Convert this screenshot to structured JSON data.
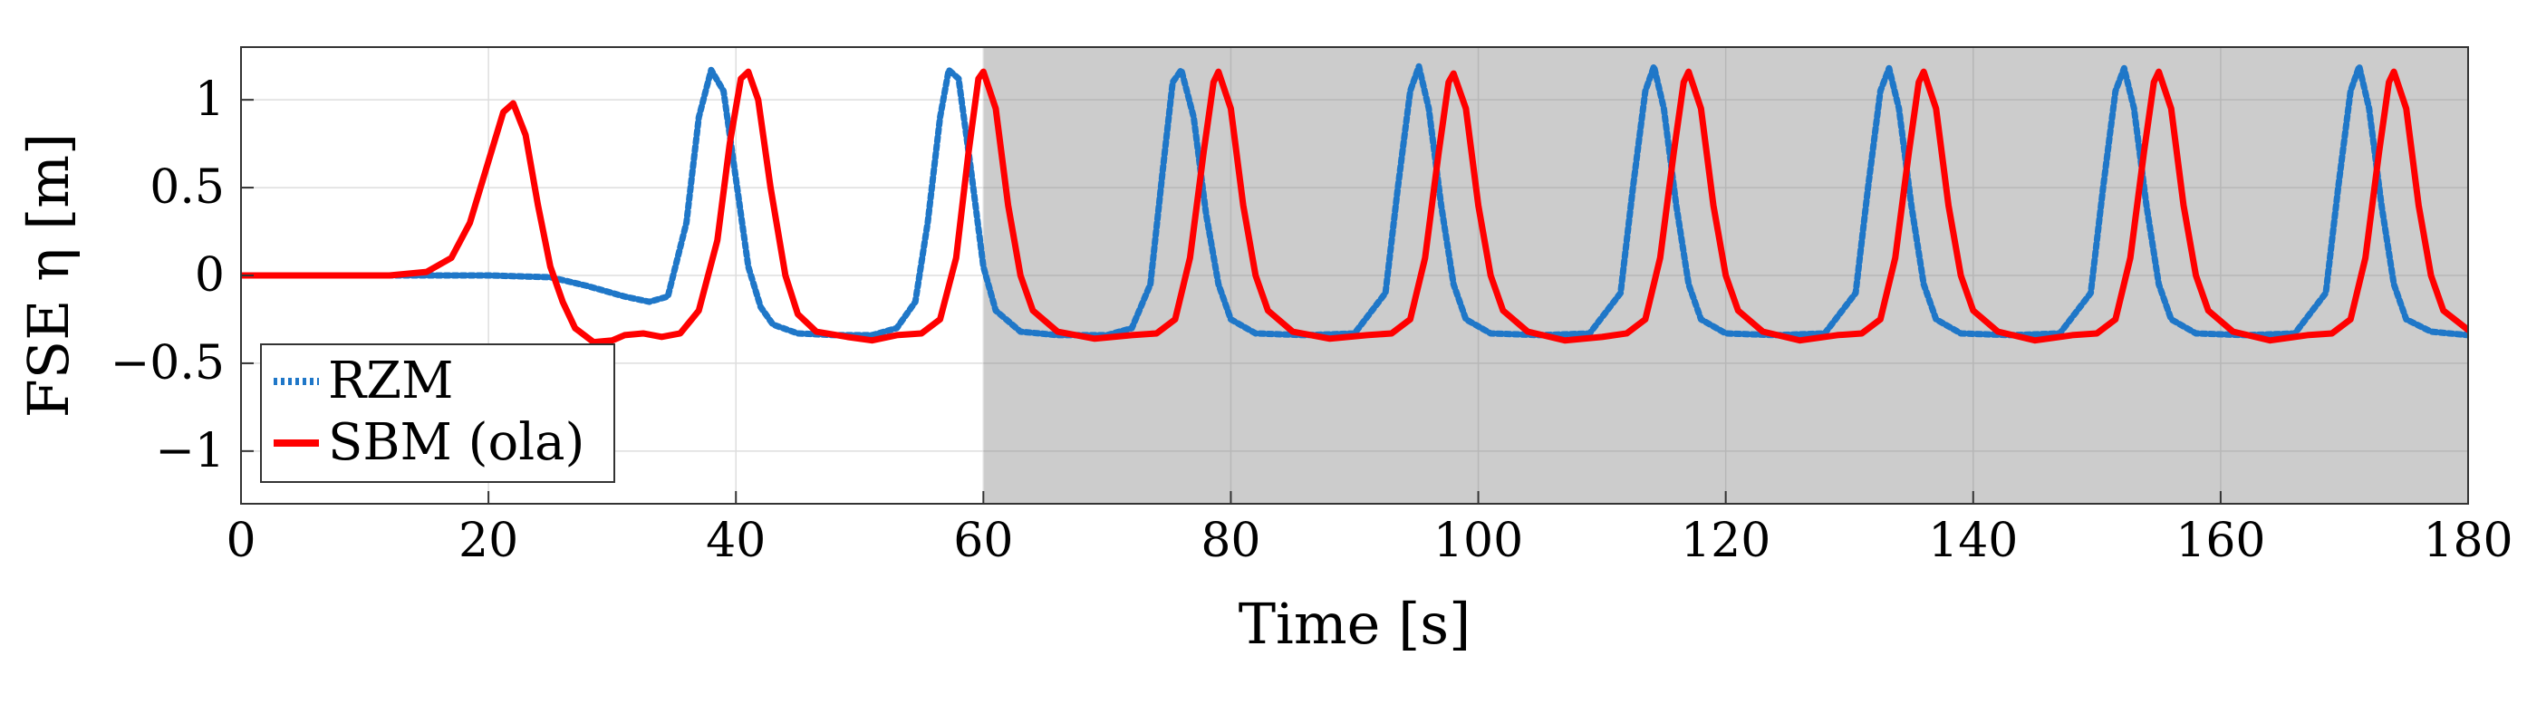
{
  "chart_data": {
    "type": "line",
    "title": "",
    "xlabel": "Time [s]",
    "ylabel": "FSE η [m]",
    "xlim": [
      0,
      180
    ],
    "ylim": [
      -1.3,
      1.3
    ],
    "xticks": [
      0,
      20,
      40,
      60,
      80,
      100,
      120,
      140,
      160,
      180
    ],
    "yticks": [
      -1,
      -0.5,
      0,
      0.5,
      1
    ],
    "xtick_labels": [
      "0",
      "20",
      "40",
      "60",
      "80",
      "100",
      "120",
      "140",
      "160",
      "180"
    ],
    "ytick_labels": [
      "−1",
      "−0.5",
      "0",
      "0.5",
      "1"
    ],
    "grid": true,
    "shaded_region": {
      "x_start": 60,
      "x_end": 180,
      "color": "#cccccc"
    },
    "legend": {
      "position": "bottom-left",
      "entries": [
        "RZM",
        "SBM (ola)"
      ]
    },
    "series": [
      {
        "name": "RZM",
        "color": "#1f77c8",
        "style": "dotted",
        "points": [
          [
            0,
            0
          ],
          [
            10,
            0
          ],
          [
            20,
            0
          ],
          [
            25,
            -0.01
          ],
          [
            28,
            -0.06
          ],
          [
            31,
            -0.12
          ],
          [
            33,
            -0.15
          ],
          [
            34.5,
            -0.12
          ],
          [
            36,
            0.3
          ],
          [
            37,
            0.9
          ],
          [
            38,
            1.17
          ],
          [
            39,
            1.05
          ],
          [
            40,
            0.55
          ],
          [
            41,
            0.05
          ],
          [
            42,
            -0.18
          ],
          [
            43,
            -0.28
          ],
          [
            45,
            -0.33
          ],
          [
            48,
            -0.34
          ],
          [
            51,
            -0.34
          ],
          [
            53,
            -0.3
          ],
          [
            54.5,
            -0.15
          ],
          [
            55.5,
            0.3
          ],
          [
            56.5,
            0.9
          ],
          [
            57.2,
            1.17
          ],
          [
            58,
            1.12
          ],
          [
            59,
            0.6
          ],
          [
            60,
            0.05
          ],
          [
            61,
            -0.2
          ],
          [
            63,
            -0.32
          ],
          [
            66,
            -0.34
          ],
          [
            70,
            -0.34
          ],
          [
            72,
            -0.3
          ],
          [
            73.5,
            -0.05
          ],
          [
            74.5,
            0.6
          ],
          [
            75.3,
            1.1
          ],
          [
            76,
            1.17
          ],
          [
            77,
            0.9
          ],
          [
            78,
            0.35
          ],
          [
            79,
            -0.05
          ],
          [
            80,
            -0.25
          ],
          [
            82,
            -0.33
          ],
          [
            86,
            -0.34
          ],
          [
            90,
            -0.33
          ],
          [
            92.5,
            -0.1
          ],
          [
            93.5,
            0.5
          ],
          [
            94.5,
            1.05
          ],
          [
            95.2,
            1.19
          ],
          [
            96,
            0.95
          ],
          [
            97,
            0.4
          ],
          [
            98,
            -0.05
          ],
          [
            99,
            -0.25
          ],
          [
            101,
            -0.33
          ],
          [
            105,
            -0.34
          ],
          [
            109,
            -0.33
          ],
          [
            111.5,
            -0.1
          ],
          [
            112.5,
            0.5
          ],
          [
            113.5,
            1.05
          ],
          [
            114.2,
            1.19
          ],
          [
            115,
            0.95
          ],
          [
            116,
            0.4
          ],
          [
            117,
            -0.05
          ],
          [
            118,
            -0.25
          ],
          [
            120,
            -0.33
          ],
          [
            124,
            -0.34
          ],
          [
            128,
            -0.33
          ],
          [
            130.5,
            -0.1
          ],
          [
            131.5,
            0.5
          ],
          [
            132.5,
            1.05
          ],
          [
            133.2,
            1.18
          ],
          [
            134,
            0.95
          ],
          [
            135,
            0.4
          ],
          [
            136,
            -0.05
          ],
          [
            137,
            -0.25
          ],
          [
            139,
            -0.33
          ],
          [
            143,
            -0.34
          ],
          [
            147,
            -0.33
          ],
          [
            149.5,
            -0.1
          ],
          [
            150.5,
            0.5
          ],
          [
            151.5,
            1.05
          ],
          [
            152.2,
            1.18
          ],
          [
            153,
            0.95
          ],
          [
            154,
            0.4
          ],
          [
            155,
            -0.05
          ],
          [
            156,
            -0.25
          ],
          [
            158,
            -0.33
          ],
          [
            162,
            -0.34
          ],
          [
            166,
            -0.33
          ],
          [
            168.5,
            -0.1
          ],
          [
            169.5,
            0.5
          ],
          [
            170.5,
            1.05
          ],
          [
            171.2,
            1.19
          ],
          [
            172,
            0.95
          ],
          [
            173,
            0.4
          ],
          [
            174,
            -0.05
          ],
          [
            175,
            -0.25
          ],
          [
            177,
            -0.32
          ],
          [
            180,
            -0.34
          ]
        ]
      },
      {
        "name": "SBM (ola)",
        "color": "#ff0000",
        "style": "solid",
        "points": [
          [
            0,
            0
          ],
          [
            12,
            0
          ],
          [
            15,
            0.02
          ],
          [
            17,
            0.1
          ],
          [
            18.5,
            0.3
          ],
          [
            20,
            0.65
          ],
          [
            21.2,
            0.93
          ],
          [
            22,
            0.98
          ],
          [
            23,
            0.8
          ],
          [
            24,
            0.4
          ],
          [
            25,
            0.05
          ],
          [
            26,
            -0.15
          ],
          [
            27,
            -0.3
          ],
          [
            28.5,
            -0.38
          ],
          [
            30,
            -0.37
          ],
          [
            31,
            -0.34
          ],
          [
            32.5,
            -0.33
          ],
          [
            34,
            -0.35
          ],
          [
            35.5,
            -0.33
          ],
          [
            37,
            -0.2
          ],
          [
            38.5,
            0.2
          ],
          [
            39.5,
            0.75
          ],
          [
            40.4,
            1.12
          ],
          [
            41,
            1.16
          ],
          [
            41.8,
            1.0
          ],
          [
            42.8,
            0.5
          ],
          [
            44,
            0.0
          ],
          [
            45,
            -0.22
          ],
          [
            46.5,
            -0.32
          ],
          [
            49,
            -0.35
          ],
          [
            51,
            -0.37
          ],
          [
            53,
            -0.34
          ],
          [
            55,
            -0.33
          ],
          [
            56.5,
            -0.25
          ],
          [
            57.8,
            0.1
          ],
          [
            58.8,
            0.7
          ],
          [
            59.6,
            1.12
          ],
          [
            60,
            1.16
          ],
          [
            61,
            0.95
          ],
          [
            62,
            0.4
          ],
          [
            63,
            0.0
          ],
          [
            64,
            -0.2
          ],
          [
            66,
            -0.32
          ],
          [
            69,
            -0.36
          ],
          [
            72,
            -0.34
          ],
          [
            74,
            -0.33
          ],
          [
            75.5,
            -0.25
          ],
          [
            76.7,
            0.1
          ],
          [
            77.8,
            0.7
          ],
          [
            78.6,
            1.1
          ],
          [
            79,
            1.16
          ],
          [
            80,
            0.95
          ],
          [
            81,
            0.4
          ],
          [
            82,
            0.0
          ],
          [
            83,
            -0.2
          ],
          [
            85,
            -0.32
          ],
          [
            88,
            -0.36
          ],
          [
            91,
            -0.34
          ],
          [
            93,
            -0.33
          ],
          [
            94.5,
            -0.25
          ],
          [
            95.7,
            0.1
          ],
          [
            96.8,
            0.7
          ],
          [
            97.6,
            1.1
          ],
          [
            98,
            1.15
          ],
          [
            99,
            0.95
          ],
          [
            100,
            0.4
          ],
          [
            101,
            0.0
          ],
          [
            102,
            -0.2
          ],
          [
            104,
            -0.32
          ],
          [
            107,
            -0.37
          ],
          [
            110,
            -0.35
          ],
          [
            112,
            -0.33
          ],
          [
            113.5,
            -0.25
          ],
          [
            114.7,
            0.1
          ],
          [
            115.8,
            0.7
          ],
          [
            116.6,
            1.1
          ],
          [
            117,
            1.16
          ],
          [
            118,
            0.95
          ],
          [
            119,
            0.4
          ],
          [
            120,
            0.0
          ],
          [
            121,
            -0.2
          ],
          [
            123,
            -0.32
          ],
          [
            126,
            -0.37
          ],
          [
            129,
            -0.34
          ],
          [
            131,
            -0.33
          ],
          [
            132.5,
            -0.25
          ],
          [
            133.7,
            0.1
          ],
          [
            134.8,
            0.7
          ],
          [
            135.6,
            1.1
          ],
          [
            136,
            1.16
          ],
          [
            137,
            0.95
          ],
          [
            138,
            0.4
          ],
          [
            139,
            0.0
          ],
          [
            140,
            -0.2
          ],
          [
            142,
            -0.32
          ],
          [
            145,
            -0.37
          ],
          [
            148,
            -0.34
          ],
          [
            150,
            -0.33
          ],
          [
            151.5,
            -0.25
          ],
          [
            152.7,
            0.1
          ],
          [
            153.8,
            0.7
          ],
          [
            154.6,
            1.1
          ],
          [
            155,
            1.16
          ],
          [
            156,
            0.95
          ],
          [
            157,
            0.4
          ],
          [
            158,
            0.0
          ],
          [
            159,
            -0.2
          ],
          [
            161,
            -0.32
          ],
          [
            164,
            -0.37
          ],
          [
            167,
            -0.34
          ],
          [
            169,
            -0.33
          ],
          [
            170.5,
            -0.25
          ],
          [
            171.7,
            0.1
          ],
          [
            172.8,
            0.7
          ],
          [
            173.6,
            1.1
          ],
          [
            174,
            1.16
          ],
          [
            175,
            0.95
          ],
          [
            176,
            0.4
          ],
          [
            177,
            0.0
          ],
          [
            178,
            -0.2
          ],
          [
            180,
            -0.31
          ]
        ]
      }
    ]
  }
}
